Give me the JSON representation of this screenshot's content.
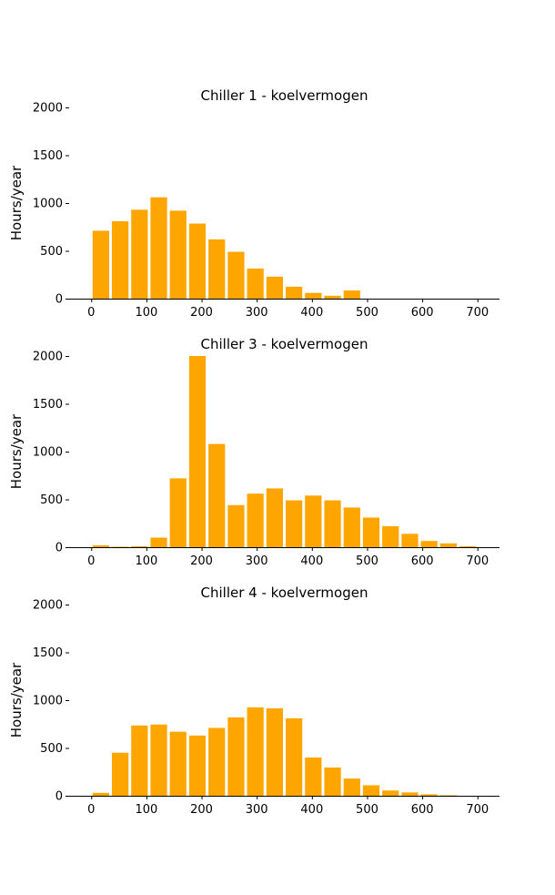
{
  "colors": {
    "bar": "#ffa500",
    "background": "#ffffff"
  },
  "chart_data": [
    {
      "type": "bar",
      "title": "Chiller 1 - koelvermogen",
      "xlabel": "",
      "ylabel": "Hours/year",
      "xlim": [
        -40,
        740
      ],
      "ylim": [
        0,
        2000
      ],
      "xticks": [
        0,
        100,
        200,
        300,
        400,
        500,
        600,
        700
      ],
      "yticks": [
        0,
        500,
        1000,
        1500,
        2000
      ],
      "grid": false,
      "bin_width": 35,
      "x": [
        0,
        35,
        70,
        105,
        140,
        175,
        210,
        245,
        280,
        315,
        350,
        385,
        420,
        455,
        490,
        525,
        560,
        595,
        630,
        665
      ],
      "values": [
        710,
        810,
        930,
        1060,
        920,
        785,
        620,
        490,
        315,
        230,
        125,
        60,
        30,
        85,
        0,
        0,
        0,
        0,
        0,
        0
      ]
    },
    {
      "type": "bar",
      "title": "Chiller 3 - koelvermogen",
      "xlabel": "",
      "ylabel": "Hours/year",
      "xlim": [
        -40,
        740
      ],
      "ylim": [
        0,
        2000
      ],
      "xticks": [
        0,
        100,
        200,
        300,
        400,
        500,
        600,
        700
      ],
      "yticks": [
        0,
        500,
        1000,
        1500,
        2000
      ],
      "grid": false,
      "bin_width": 35,
      "x": [
        0,
        35,
        70,
        105,
        140,
        175,
        210,
        245,
        280,
        315,
        350,
        385,
        420,
        455,
        490,
        525,
        560,
        595,
        630,
        665
      ],
      "values": [
        20,
        5,
        10,
        100,
        720,
        2000,
        1080,
        440,
        560,
        615,
        490,
        540,
        490,
        415,
        310,
        220,
        140,
        65,
        40,
        10
      ]
    },
    {
      "type": "bar",
      "title": "Chiller 4 - koelvermogen",
      "xlabel": "",
      "ylabel": "Hours/year",
      "xlim": [
        -40,
        740
      ],
      "ylim": [
        0,
        2000
      ],
      "xticks": [
        0,
        100,
        200,
        300,
        400,
        500,
        600,
        700
      ],
      "yticks": [
        0,
        500,
        1000,
        1500,
        2000
      ],
      "grid": false,
      "bin_width": 35,
      "x": [
        0,
        35,
        70,
        105,
        140,
        175,
        210,
        245,
        280,
        315,
        350,
        385,
        420,
        455,
        490,
        525,
        560,
        595,
        630,
        665
      ],
      "values": [
        30,
        450,
        735,
        745,
        670,
        630,
        710,
        820,
        925,
        915,
        810,
        400,
        295,
        180,
        110,
        55,
        35,
        15,
        5,
        0
      ]
    }
  ]
}
